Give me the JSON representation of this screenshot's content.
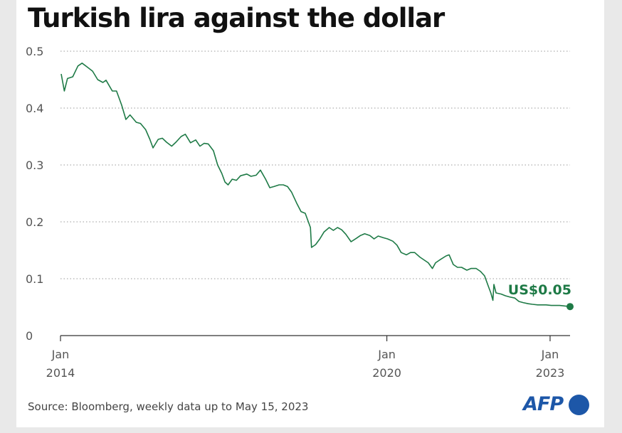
{
  "chart_data": {
    "type": "line",
    "title": "Turkish lira against the dollar",
    "xlabel": "",
    "ylabel": "",
    "xlim": [
      "2014-01-01",
      "2023-05-15"
    ],
    "ylim": [
      0,
      0.5
    ],
    "yticks": [
      0,
      0.1,
      0.2,
      0.3,
      0.4,
      0.5
    ],
    "ytick_labels": [
      "0",
      "0.1",
      "0.2",
      "0.3",
      "0.4",
      "0.5"
    ],
    "xticks": [
      {
        "date": "2014-01-01",
        "line1": "Jan",
        "line2": "2014"
      },
      {
        "date": "2020-01-01",
        "line1": "Jan",
        "line2": "2020"
      },
      {
        "date": "2023-01-01",
        "line1": "Jan",
        "line2": "2023"
      }
    ],
    "grid": "horizontal-dotted",
    "line_color": "#1e7a46",
    "series": [
      {
        "name": "",
        "points": [
          [
            "2014-01-06",
            0.46
          ],
          [
            "2014-01-27",
            0.43
          ],
          [
            "2014-02-17",
            0.452
          ],
          [
            "2014-03-24",
            0.455
          ],
          [
            "2014-04-28",
            0.474
          ],
          [
            "2014-05-26",
            0.479
          ],
          [
            "2014-06-30",
            0.472
          ],
          [
            "2014-08-04",
            0.465
          ],
          [
            "2014-09-08",
            0.45
          ],
          [
            "2014-10-13",
            0.445
          ],
          [
            "2014-11-03",
            0.449
          ],
          [
            "2014-12-15",
            0.43
          ],
          [
            "2015-01-12",
            0.43
          ],
          [
            "2015-02-16",
            0.405
          ],
          [
            "2015-03-16",
            0.38
          ],
          [
            "2015-04-13",
            0.388
          ],
          [
            "2015-05-25",
            0.375
          ],
          [
            "2015-06-22",
            0.373
          ],
          [
            "2015-07-27",
            0.362
          ],
          [
            "2015-08-24",
            0.345
          ],
          [
            "2015-09-14",
            0.33
          ],
          [
            "2015-10-19",
            0.345
          ],
          [
            "2015-11-16",
            0.347
          ],
          [
            "2015-12-14",
            0.34
          ],
          [
            "2016-01-18",
            0.333
          ],
          [
            "2016-02-15",
            0.34
          ],
          [
            "2016-03-21",
            0.35
          ],
          [
            "2016-04-18",
            0.354
          ],
          [
            "2016-05-23",
            0.339
          ],
          [
            "2016-06-27",
            0.344
          ],
          [
            "2016-07-25",
            0.333
          ],
          [
            "2016-08-22",
            0.338
          ],
          [
            "2016-09-19",
            0.337
          ],
          [
            "2016-10-24",
            0.325
          ],
          [
            "2016-11-21",
            0.3
          ],
          [
            "2016-12-19",
            0.285
          ],
          [
            "2017-01-09",
            0.27
          ],
          [
            "2017-01-30",
            0.265
          ],
          [
            "2017-02-27",
            0.275
          ],
          [
            "2017-03-27",
            0.273
          ],
          [
            "2017-04-24",
            0.281
          ],
          [
            "2017-06-05",
            0.284
          ],
          [
            "2017-07-03",
            0.28
          ],
          [
            "2017-08-07",
            0.282
          ],
          [
            "2017-09-04",
            0.291
          ],
          [
            "2017-10-09",
            0.275
          ],
          [
            "2017-11-06",
            0.26
          ],
          [
            "2017-12-04",
            0.262
          ],
          [
            "2018-01-08",
            0.265
          ],
          [
            "2018-02-05",
            0.265
          ],
          [
            "2018-03-05",
            0.262
          ],
          [
            "2018-04-02",
            0.252
          ],
          [
            "2018-05-07",
            0.232
          ],
          [
            "2018-06-04",
            0.218
          ],
          [
            "2018-07-02",
            0.215
          ],
          [
            "2018-08-06",
            0.19
          ],
          [
            "2018-08-13",
            0.155
          ],
          [
            "2018-09-10",
            0.16
          ],
          [
            "2018-10-08",
            0.17
          ],
          [
            "2018-11-05",
            0.182
          ],
          [
            "2018-12-10",
            0.19
          ],
          [
            "2019-01-07",
            0.185
          ],
          [
            "2019-02-04",
            0.19
          ],
          [
            "2019-03-04",
            0.186
          ],
          [
            "2019-04-01",
            0.178
          ],
          [
            "2019-05-06",
            0.165
          ],
          [
            "2019-06-10",
            0.171
          ],
          [
            "2019-07-08",
            0.176
          ],
          [
            "2019-08-05",
            0.179
          ],
          [
            "2019-09-09",
            0.176
          ],
          [
            "2019-10-07",
            0.17
          ],
          [
            "2019-11-04",
            0.175
          ],
          [
            "2019-12-09",
            0.172
          ],
          [
            "2020-01-06",
            0.17
          ],
          [
            "2020-02-10",
            0.166
          ],
          [
            "2020-03-09",
            0.159
          ],
          [
            "2020-04-06",
            0.146
          ],
          [
            "2020-05-11",
            0.142
          ],
          [
            "2020-06-08",
            0.146
          ],
          [
            "2020-07-06",
            0.146
          ],
          [
            "2020-08-10",
            0.138
          ],
          [
            "2020-09-07",
            0.133
          ],
          [
            "2020-10-05",
            0.128
          ],
          [
            "2020-11-02",
            0.118
          ],
          [
            "2020-11-23",
            0.128
          ],
          [
            "2020-12-21",
            0.133
          ],
          [
            "2021-02-01",
            0.14
          ],
          [
            "2021-02-22",
            0.142
          ],
          [
            "2021-03-22",
            0.125
          ],
          [
            "2021-04-19",
            0.12
          ],
          [
            "2021-05-17",
            0.12
          ],
          [
            "2021-06-21",
            0.115
          ],
          [
            "2021-07-19",
            0.118
          ],
          [
            "2021-08-23",
            0.118
          ],
          [
            "2021-09-20",
            0.113
          ],
          [
            "2021-10-18",
            0.105
          ],
          [
            "2021-11-15",
            0.085
          ],
          [
            "2021-11-29",
            0.075
          ],
          [
            "2021-12-13",
            0.062
          ],
          [
            "2021-12-20",
            0.09
          ],
          [
            "2022-01-03",
            0.075
          ],
          [
            "2022-02-07",
            0.073
          ],
          [
            "2022-03-07",
            0.07
          ],
          [
            "2022-04-04",
            0.068
          ],
          [
            "2022-05-09",
            0.066
          ],
          [
            "2022-06-06",
            0.06
          ],
          [
            "2022-07-04",
            0.058
          ],
          [
            "2022-08-08",
            0.056
          ],
          [
            "2022-09-05",
            0.055
          ],
          [
            "2022-10-10",
            0.054
          ],
          [
            "2022-12-05",
            0.054
          ],
          [
            "2023-01-09",
            0.053
          ],
          [
            "2023-03-06",
            0.053
          ],
          [
            "2023-05-15",
            0.051
          ]
        ]
      }
    ],
    "end_point": {
      "date": "2023-05-15",
      "value": 0.051,
      "label": "US$0.05"
    }
  },
  "source": "Source: Bloomberg, weekly data up to May 15, 2023",
  "logo": {
    "text": "AFP"
  }
}
